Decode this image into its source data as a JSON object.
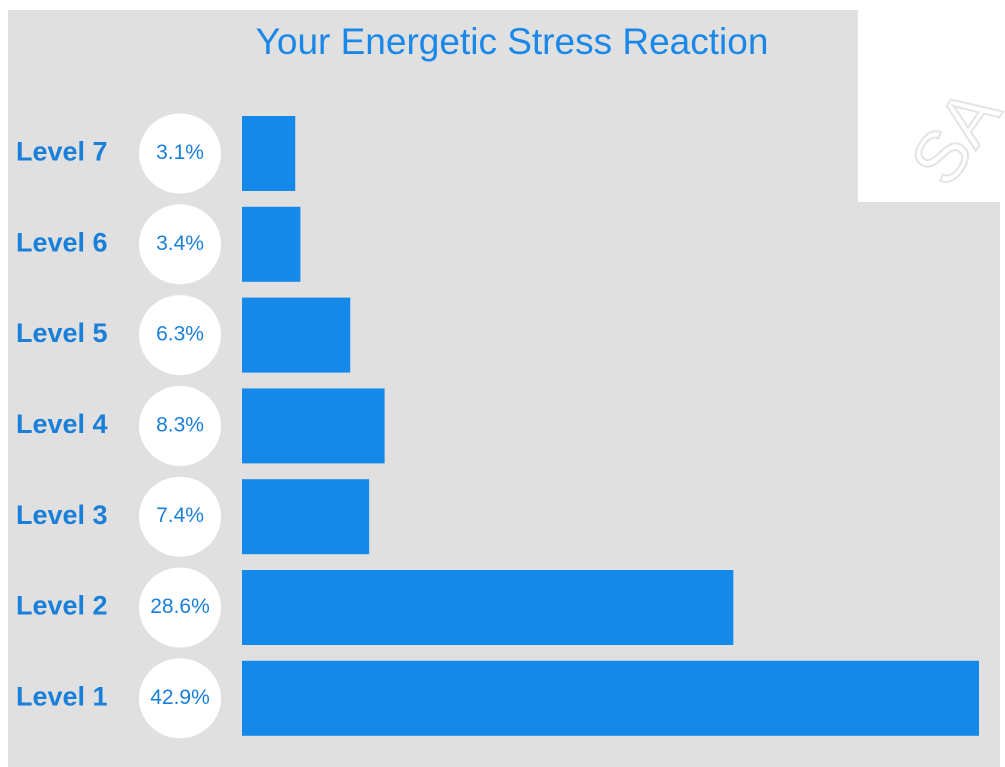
{
  "chart_data": {
    "type": "bar",
    "orientation": "horizontal",
    "title": "Your Energetic Stress Reaction",
    "watermark": "SA",
    "categories": [
      "Level 7",
      "Level 6",
      "Level 5",
      "Level 4",
      "Level 3",
      "Level 2",
      "Level 1"
    ],
    "values": [
      3.1,
      3.4,
      6.3,
      8.3,
      7.4,
      28.6,
      42.9
    ],
    "value_labels": [
      "3.1%",
      "3.4%",
      "6.3%",
      "8.3%",
      "7.4%",
      "28.6%",
      "42.9%"
    ],
    "color": "#1589ea"
  }
}
